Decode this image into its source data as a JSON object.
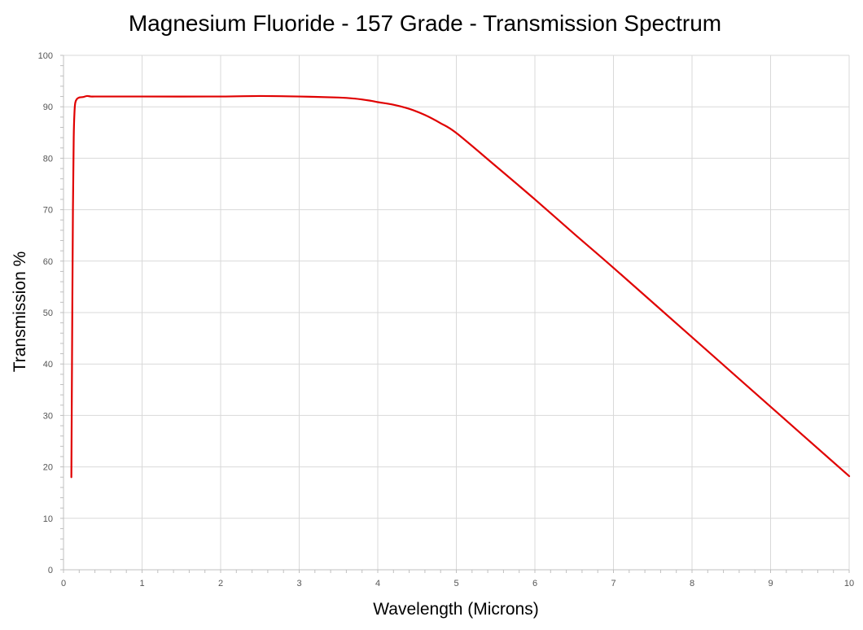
{
  "chart_data": {
    "type": "line",
    "title": "Magnesium Fluoride - 157 Grade - Transmission Spectrum",
    "xlabel": "Wavelength (Microns)",
    "ylabel": "Transmission %",
    "xlim": [
      0,
      10
    ],
    "ylim": [
      0,
      100
    ],
    "xticks": [
      "0",
      "1",
      "2",
      "3",
      "4",
      "5",
      "6",
      "7",
      "8",
      "9",
      "10"
    ],
    "yticks": [
      "0",
      "10",
      "20",
      "30",
      "40",
      "50",
      "60",
      "70",
      "80",
      "90",
      "100"
    ],
    "grid": true,
    "legend": "none",
    "series": [
      {
        "color": "#e00000",
        "x": [
          0.1,
          0.11,
          0.12,
          0.13,
          0.14,
          0.15,
          0.17,
          0.2,
          0.25,
          0.3,
          0.35,
          0.4,
          1.0,
          2.0,
          2.5,
          3.0,
          3.5,
          3.7,
          3.9,
          4.0,
          4.2,
          4.4,
          4.6,
          4.8,
          5.0,
          5.5,
          6.0,
          6.5,
          7.0,
          8.0,
          9.0,
          10.0
        ],
        "y": [
          18,
          45,
          70,
          84,
          89,
          90.8,
          91.5,
          91.8,
          91.9,
          92.1,
          92.0,
          92.0,
          92.0,
          92.0,
          92.1,
          92.0,
          91.8,
          91.6,
          91.2,
          90.9,
          90.4,
          89.6,
          88.4,
          86.8,
          84.9,
          78.5,
          72.0,
          65.3,
          58.7,
          45.2,
          31.7,
          18.2
        ]
      }
    ]
  }
}
